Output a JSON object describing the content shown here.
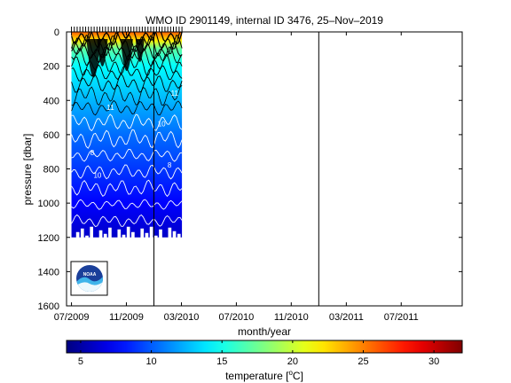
{
  "chart_data": {
    "type": "heatmap",
    "title": "WMO ID 2901149, internal ID 3476, 25–Nov–2019",
    "xlabel": "month/year",
    "ylabel": "pressure [dbar]",
    "x_ticks": [
      "07/2009",
      "11/2009",
      "03/2010",
      "07/2010",
      "11/2010",
      "03/2011",
      "07/2011"
    ],
    "x_tick_values": [
      2009.5,
      2009.833,
      2010.167,
      2010.5,
      2010.833,
      2011.167,
      2011.5
    ],
    "xlim": [
      2009.47,
      2011.87
    ],
    "y_ticks": [
      "0",
      "200",
      "400",
      "600",
      "800",
      "1000",
      "1200",
      "1400",
      "1600"
    ],
    "y_tick_values": [
      0,
      200,
      400,
      600,
      800,
      1000,
      1200,
      1400,
      1600
    ],
    "ylim": [
      0,
      1600
    ],
    "y_reversed": true,
    "data_xlim": [
      2009.5,
      2010.17
    ],
    "data_max_pressure": 1200,
    "year_boundaries": [
      2010.0,
      2011.0
    ],
    "colorbar": {
      "label": "temperature [°C]",
      "label_text": "temperature [",
      "label_sup": "o",
      "label_unit": "C]",
      "range": [
        4,
        32
      ],
      "ticks": [
        "5",
        "10",
        "15",
        "20",
        "25",
        "30"
      ],
      "tick_values": [
        5,
        10,
        15,
        20,
        25,
        30
      ],
      "colormap": "jet"
    },
    "contour_labels": [
      "11",
      "10",
      "11",
      "10",
      "8",
      "8"
    ],
    "temperature_by_pressure": [
      {
        "pressure": 0,
        "temperature": 26
      },
      {
        "pressure": 50,
        "temperature": 22
      },
      {
        "pressure": 100,
        "temperature": 17
      },
      {
        "pressure": 200,
        "temperature": 14.5
      },
      {
        "pressure": 400,
        "temperature": 12.5
      },
      {
        "pressure": 600,
        "temperature": 10.5
      },
      {
        "pressure": 800,
        "temperature": 9
      },
      {
        "pressure": 1000,
        "temperature": 7.5
      },
      {
        "pressure": 1200,
        "temperature": 6
      }
    ],
    "grid": false,
    "logo": "noaa-logo"
  }
}
